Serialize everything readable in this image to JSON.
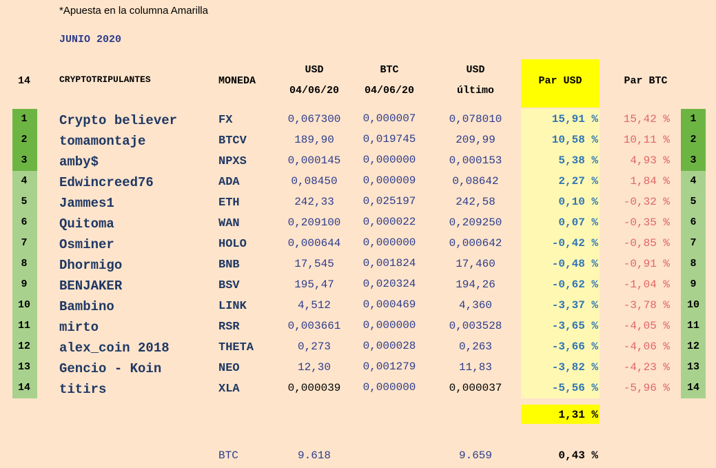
{
  "note": "*Apuesta en la columna Amarilla",
  "title": "JUNIO 2020",
  "header": {
    "count": "14",
    "name": "CRYPTOTRIPULANTES",
    "coin": "MONEDA",
    "usd_a": "USD",
    "usd_b": "04/06/20",
    "btc_a": "BTC",
    "btc_b": "04/06/20",
    "last_a": "USD",
    "last_b": "último",
    "par_usd": "Par USD",
    "par_btc": "Par BTC"
  },
  "table": {
    "rows": [
      [
        "1",
        "Crypto believer",
        "FX",
        "0,067300",
        "0,000007",
        "0,078010",
        "15,91 %",
        "15,42 %"
      ],
      [
        "2",
        "tomamontaje",
        "BTCV",
        "189,90",
        "0,019745",
        "209,99",
        "10,58 %",
        "10,11 %"
      ],
      [
        "3",
        "amby$",
        "NPXS",
        "0,000145",
        "0,000000",
        "0,000153",
        "5,38 %",
        "4,93 %"
      ],
      [
        "4",
        "Edwincreed76",
        "ADA",
        "0,08450",
        "0,000009",
        "0,08642",
        "2,27 %",
        "1,84 %"
      ],
      [
        "5",
        "Jammes1",
        "ETH",
        "242,33",
        "0,025197",
        "242,58",
        "0,10 %",
        "-0,32 %"
      ],
      [
        "6",
        "Quitoma",
        "WAN",
        "0,209100",
        "0,000022",
        "0,209250",
        "0,07 %",
        "-0,35 %"
      ],
      [
        "7",
        "Osminer",
        "HOLO",
        "0,000644",
        "0,000000",
        "0,000642",
        "-0,42 %",
        "-0,85 %"
      ],
      [
        "8",
        "Dhormigo",
        "BNB",
        "17,545",
        "0,001824",
        "17,460",
        "-0,48 %",
        "-0,91 %"
      ],
      [
        "9",
        "BENJAKER",
        "BSV",
        "195,47",
        "0,020324",
        "194,26",
        "-0,62 %",
        "-1,04 %"
      ],
      [
        "10",
        "Bambino",
        "LINK",
        "4,512",
        "0,000469",
        "4,360",
        "-3,37 %",
        "-3,78 %"
      ],
      [
        "11",
        "mirto",
        "RSR",
        "0,003661",
        "0,000000",
        "0,003528",
        "-3,65 %",
        "-4,05 %"
      ],
      [
        "12",
        "alex_coin 2018",
        "THETA",
        "0,273",
        "0,000028",
        "0,263",
        "-3,66 %",
        "-4,06 %"
      ],
      [
        "13",
        "Gencio - Koin",
        "NEO",
        "12,30",
        "0,001279",
        "11,83",
        "-3,82 %",
        "-4,23 %"
      ],
      [
        "14",
        "titirs",
        "XLA",
        "0,000039",
        "0,000000",
        "0,000037",
        "-5,56 %",
        "-5,96 %"
      ]
    ]
  },
  "total": "1,31 %",
  "btc_row": {
    "coin": "BTC",
    "usd": "9.618",
    "last": "9.659",
    "par": "0,43 %"
  }
}
